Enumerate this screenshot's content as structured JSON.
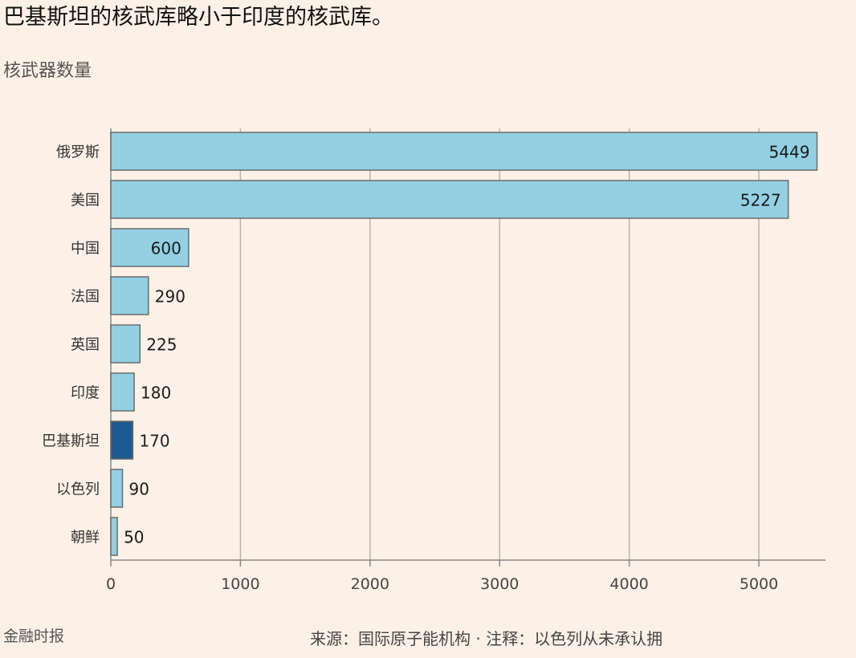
{
  "title": "巴基斯坦的核武库略小于印度的核武库。",
  "subtitle": "核武器数量",
  "source": "来源：国际原子能机构 · 注释：以色列从未承认拥",
  "credit": "金融时报",
  "colors": {
    "background": "#fdf1e7",
    "bar_default": "#93d0e3",
    "bar_highlight": "#1d5a91",
    "bar_stroke": "#6b6b6b",
    "grid": "#b8b3ad"
  },
  "chart_data": {
    "type": "bar",
    "orientation": "horizontal",
    "categories": [
      "俄罗斯",
      "美国",
      "中国",
      "法国",
      "英国",
      "印度",
      "巴基斯坦",
      "以色列",
      "朝鲜"
    ],
    "values": [
      5449,
      5227,
      600,
      290,
      225,
      180,
      170,
      90,
      50
    ],
    "highlight": "巴基斯坦",
    "xlim": [
      0,
      5500
    ],
    "xticks": [
      "0",
      "1000",
      "2000",
      "3000",
      "4000",
      "5000"
    ],
    "grid": true
  }
}
